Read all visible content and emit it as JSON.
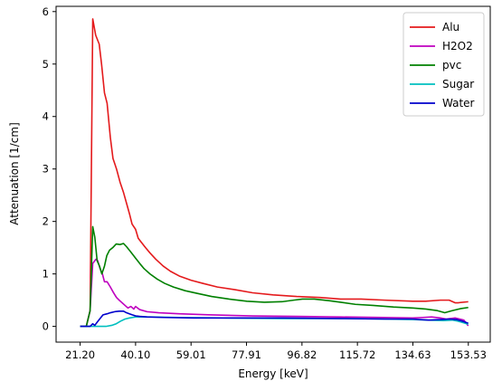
{
  "chart_data": {
    "type": "line",
    "title": "",
    "xlabel": "Energy [keV]",
    "ylabel": "Attenuation [1/cm]",
    "xlim": [
      13.0,
      161.0
    ],
    "ylim": [
      -0.3,
      6.1
    ],
    "xticks": [
      21.2,
      40.1,
      59.01,
      77.91,
      96.82,
      115.72,
      134.63,
      153.53
    ],
    "xtick_labels": [
      "21.20",
      "40.10",
      "59.01",
      "77.91",
      "96.82",
      "115.72",
      "134.63",
      "153.53"
    ],
    "yticks": [
      0,
      1,
      2,
      3,
      4,
      5,
      6
    ],
    "ytick_labels": [
      "0",
      "1",
      "2",
      "3",
      "4",
      "5",
      "6"
    ],
    "grid": false,
    "legend_position": "top-right",
    "series": [
      {
        "name": "Alu",
        "color": "#e41a1c",
        "x": [
          21.2,
          23.3,
          24.6,
          25.5,
          26.5,
          27.7,
          28.5,
          29.5,
          30.4,
          31.5,
          32.4,
          33.6,
          34.8,
          36.0,
          37.0,
          38.0,
          38.9,
          40.1,
          41.0,
          42.1,
          43.5,
          45.0,
          47.0,
          49.5,
          52.0,
          55.0,
          59.0,
          63.0,
          68.0,
          74.0,
          80.0,
          87.0,
          95.0,
          103.0,
          110.0,
          117.0,
          125.0,
          134.6,
          139.0,
          144.0,
          147.0,
          149.0,
          150.0,
          153.5
        ],
        "y": [
          0.0,
          0.0,
          0.3,
          5.86,
          5.55,
          5.38,
          5.0,
          4.45,
          4.25,
          3.6,
          3.2,
          3.0,
          2.75,
          2.55,
          2.35,
          2.15,
          1.95,
          1.85,
          1.68,
          1.6,
          1.5,
          1.4,
          1.28,
          1.15,
          1.05,
          0.96,
          0.88,
          0.82,
          0.75,
          0.7,
          0.64,
          0.6,
          0.57,
          0.55,
          0.52,
          0.52,
          0.5,
          0.48,
          0.48,
          0.5,
          0.5,
          0.45,
          0.45,
          0.47
        ]
      },
      {
        "name": "H2O2",
        "color": "#bf00bf",
        "x": [
          21.2,
          23.3,
          24.6,
          25.5,
          26.6,
          27.2,
          28.0,
          28.8,
          29.5,
          30.4,
          31.5,
          32.5,
          33.6,
          34.5,
          35.5,
          36.5,
          37.5,
          38.5,
          39.5,
          40.1,
          41.5,
          44.0,
          48.0,
          55.0,
          65.0,
          80.0,
          95.0,
          110.0,
          125.0,
          134.6,
          138.0,
          141.0,
          144.0,
          146.0,
          149.0,
          152.0,
          153.5
        ],
        "y": [
          0.0,
          0.0,
          0.3,
          1.2,
          1.28,
          1.25,
          1.1,
          1.0,
          0.85,
          0.85,
          0.75,
          0.65,
          0.55,
          0.5,
          0.45,
          0.4,
          0.35,
          0.38,
          0.33,
          0.38,
          0.32,
          0.28,
          0.26,
          0.24,
          0.22,
          0.2,
          0.19,
          0.18,
          0.17,
          0.16,
          0.17,
          0.18,
          0.16,
          0.14,
          0.16,
          0.12,
          0.01
        ]
      },
      {
        "name": "pvc",
        "color": "#008000",
        "x": [
          21.2,
          23.3,
          24.6,
          25.5,
          26.2,
          27.0,
          27.8,
          28.6,
          29.5,
          30.3,
          31.2,
          32.3,
          33.5,
          34.8,
          36.0,
          37.0,
          38.0,
          39.0,
          40.1,
          41.5,
          43.0,
          45.0,
          47.5,
          50.0,
          53.0,
          57.0,
          61.0,
          66.0,
          72.0,
          78.0,
          84.0,
          90.0,
          94.0,
          97.0,
          101.0,
          106.0,
          110.0,
          115.0,
          121.0,
          128.0,
          134.6,
          139.0,
          143.0,
          145.5,
          148.0,
          151.0,
          153.5
        ],
        "y": [
          0.0,
          0.0,
          0.3,
          1.9,
          1.7,
          1.25,
          1.15,
          1.0,
          1.15,
          1.35,
          1.45,
          1.5,
          1.57,
          1.56,
          1.58,
          1.52,
          1.45,
          1.38,
          1.3,
          1.2,
          1.1,
          1.0,
          0.9,
          0.82,
          0.75,
          0.68,
          0.63,
          0.57,
          0.52,
          0.48,
          0.46,
          0.47,
          0.5,
          0.52,
          0.52,
          0.49,
          0.46,
          0.42,
          0.4,
          0.37,
          0.35,
          0.33,
          0.3,
          0.26,
          0.3,
          0.34,
          0.36
        ]
      },
      {
        "name": "Sugar",
        "color": "#00bfbf",
        "x": [
          21.2,
          24.0,
          26.0,
          28.0,
          30.0,
          32.0,
          33.5,
          35.0,
          36.5,
          38.0,
          40.1,
          45.0,
          55.0,
          70.0,
          90.0,
          110.0,
          125.0,
          134.6,
          140.0,
          145.0,
          148.0,
          150.0,
          153.5
        ],
        "y": [
          0.0,
          0.0,
          0.0,
          0.0,
          0.0,
          0.02,
          0.05,
          0.1,
          0.14,
          0.16,
          0.18,
          0.18,
          0.17,
          0.16,
          0.15,
          0.15,
          0.14,
          0.13,
          0.12,
          0.11,
          0.12,
          0.1,
          0.04
        ]
      },
      {
        "name": "Water",
        "color": "#0000cc",
        "x": [
          21.2,
          23.3,
          24.6,
          25.5,
          26.2,
          27.0,
          28.0,
          29.0,
          30.4,
          31.5,
          33.0,
          34.5,
          36.0,
          37.0,
          38.0,
          39.0,
          40.1,
          41.5,
          44.0,
          50.0,
          60.0,
          75.0,
          90.0,
          110.0,
          125.0,
          134.6,
          140.0,
          144.0,
          147.0,
          149.5,
          151.5,
          153.5
        ],
        "y": [
          0.0,
          0.0,
          0.0,
          0.05,
          0.02,
          0.08,
          0.15,
          0.22,
          0.24,
          0.26,
          0.28,
          0.29,
          0.29,
          0.26,
          0.24,
          0.22,
          0.2,
          0.19,
          0.18,
          0.17,
          0.16,
          0.16,
          0.16,
          0.15,
          0.14,
          0.14,
          0.12,
          0.13,
          0.14,
          0.13,
          0.1,
          0.06
        ]
      }
    ]
  }
}
